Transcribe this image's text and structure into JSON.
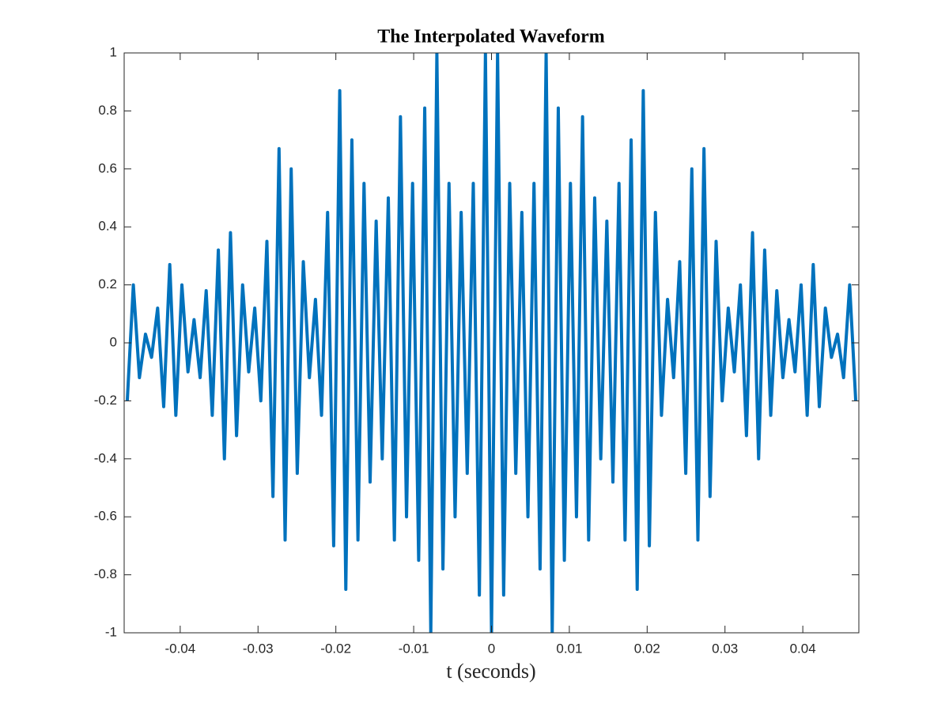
{
  "chart_data": {
    "type": "line",
    "title": "The Interpolated Waveform",
    "xlabel": "t (seconds)",
    "color": "#0072bd",
    "xlim": [
      -0.0472,
      0.0472
    ],
    "ylim": [
      -1,
      1
    ],
    "xticks": [
      -0.04,
      -0.03,
      -0.02,
      -0.01,
      0,
      0.01,
      0.02,
      0.03,
      0.04
    ],
    "yticks": [
      -1,
      -0.8,
      -0.6,
      -0.4,
      -0.2,
      0,
      0.2,
      0.4,
      0.6,
      0.8,
      1
    ],
    "grid": false,
    "x": [
      -0.0468,
      -0.04602,
      -0.04524,
      -0.04446,
      -0.04368,
      -0.0429,
      -0.04212,
      -0.04134,
      -0.04056,
      -0.03978,
      -0.039,
      -0.03822,
      -0.03744,
      -0.03666,
      -0.03588,
      -0.0351,
      -0.03432,
      -0.03354,
      -0.03276,
      -0.03198,
      -0.0312,
      -0.03042,
      -0.02964,
      -0.02886,
      -0.02808,
      -0.0273,
      -0.02652,
      -0.02574,
      -0.02496,
      -0.02418,
      -0.0234,
      -0.02262,
      -0.02184,
      -0.02106,
      -0.02028,
      -0.0195,
      -0.01872,
      -0.01794,
      -0.01716,
      -0.01638,
      -0.0156,
      -0.01482,
      -0.01404,
      -0.01326,
      -0.01248,
      -0.0117,
      -0.01092,
      -0.01014,
      -0.00936,
      -0.00858,
      -0.0078,
      -0.00702,
      -0.00624,
      -0.00546,
      -0.00468,
      -0.0039,
      -0.00312,
      -0.00234,
      -0.00156,
      -0.00078,
      0,
      0.00078,
      0.00156,
      0.00234,
      0.00312,
      0.0039,
      0.00468,
      0.00546,
      0.00624,
      0.00702,
      0.0078,
      0.00858,
      0.00936,
      0.01014,
      0.01092,
      0.0117,
      0.01248,
      0.01326,
      0.01404,
      0.01482,
      0.0156,
      0.01638,
      0.01716,
      0.01794,
      0.01872,
      0.0195,
      0.02028,
      0.02106,
      0.02184,
      0.02262,
      0.0234,
      0.02418,
      0.02496,
      0.02574,
      0.02652,
      0.0273,
      0.02808,
      0.02886,
      0.02964,
      0.03042,
      0.0312,
      0.03198,
      0.03276,
      0.03354,
      0.03432,
      0.0351,
      0.03588,
      0.03666,
      0.03744,
      0.03822,
      0.039,
      0.03978,
      0.04056,
      0.04134,
      0.04212,
      0.0429,
      0.04368,
      0.04446,
      0.04524,
      0.04602,
      0.0468
    ],
    "values": [
      -0.2,
      0.2,
      -0.12,
      0.03,
      -0.05,
      0.12,
      -0.22,
      0.27,
      -0.25,
      0.2,
      -0.1,
      0.08,
      -0.12,
      0.18,
      -0.25,
      0.32,
      -0.4,
      0.38,
      -0.32,
      0.2,
      -0.1,
      0.12,
      -0.2,
      0.35,
      -0.53,
      0.67,
      -0.68,
      0.6,
      -0.45,
      0.28,
      -0.12,
      0.15,
      -0.25,
      0.45,
      -0.7,
      0.87,
      -0.85,
      0.7,
      -0.68,
      0.55,
      -0.48,
      0.42,
      -0.4,
      0.5,
      -0.68,
      0.78,
      -0.6,
      0.55,
      -0.75,
      0.81,
      -1,
      1,
      -0.78,
      0.55,
      -0.6,
      0.45,
      -0.45,
      0.55,
      -0.87,
      1,
      -1,
      1,
      -0.87,
      0.55,
      -0.45,
      0.45,
      -0.6,
      0.55,
      -0.78,
      1,
      -1,
      0.81,
      -0.75,
      0.55,
      -0.6,
      0.78,
      -0.68,
      0.5,
      -0.4,
      0.42,
      -0.48,
      0.55,
      -0.68,
      0.7,
      -0.85,
      0.87,
      -0.7,
      0.45,
      -0.25,
      0.15,
      -0.12,
      0.28,
      -0.45,
      0.6,
      -0.68,
      0.67,
      -0.53,
      0.35,
      -0.2,
      0.12,
      -0.1,
      0.2,
      -0.32,
      0.38,
      -0.4,
      0.32,
      -0.25,
      0.18,
      -0.12,
      0.08,
      -0.1,
      0.2,
      -0.25,
      0.27,
      -0.22,
      0.12,
      -0.05,
      0.03,
      -0.12,
      0.2,
      -0.2
    ]
  }
}
